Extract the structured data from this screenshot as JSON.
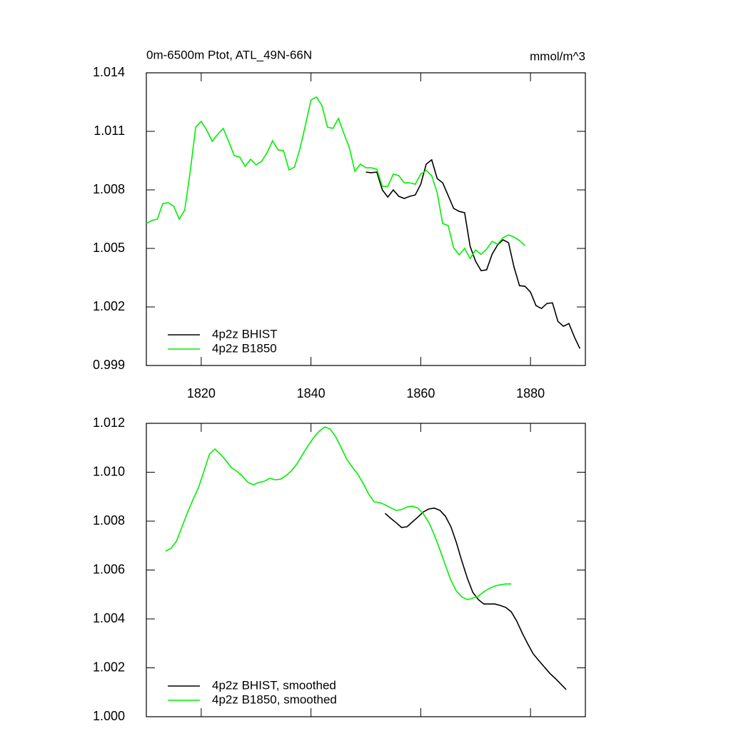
{
  "chart_data": [
    {
      "type": "line",
      "title": "0m-6500m Ptot, ATL_49N-66N",
      "units": "mmol/m^3",
      "xlim": [
        1810,
        1890
      ],
      "xticks": [
        1820,
        1840,
        1860,
        1880
      ],
      "ylim": [
        0.999,
        1.014
      ],
      "yticks": [
        1.014,
        1.011,
        1.008,
        1.005,
        1.002,
        0.999
      ],
      "legend": "lower left",
      "series": [
        {
          "name": "4p2z BHIST",
          "color": "#000000",
          "x": [
            1850,
            1851,
            1852,
            1853,
            1854,
            1855,
            1856,
            1857,
            1858,
            1859,
            1860,
            1861,
            1862,
            1863,
            1864,
            1865,
            1866,
            1867,
            1868,
            1869,
            1870,
            1871,
            1872,
            1873,
            1874,
            1875,
            1876,
            1877,
            1878,
            1879,
            1880,
            1881,
            1882,
            1883,
            1884,
            1885,
            1886,
            1887,
            1888,
            1889
          ],
          "values": [
            1.00891,
            1.00888,
            1.00891,
            1.008,
            1.00763,
            1.008,
            1.00767,
            1.00756,
            1.00767,
            1.00774,
            1.00829,
            1.00932,
            1.00954,
            1.00858,
            1.00836,
            1.00771,
            1.00705,
            1.0069,
            1.00683,
            1.00511,
            1.00434,
            1.00386,
            1.0039,
            1.0047,
            1.00518,
            1.00544,
            1.00529,
            1.00404,
            1.00309,
            1.00306,
            1.00276,
            1.00207,
            1.00192,
            1.00218,
            1.00221,
            1.00126,
            1.00101,
            1.00115,
            1.00046,
            0.99987
          ]
        },
        {
          "name": "4p2z B1850",
          "color": "#00ee00",
          "x": [
            1810,
            1811,
            1812,
            1813,
            1814,
            1815,
            1816,
            1817,
            1818,
            1819,
            1820,
            1821,
            1822,
            1823,
            1824,
            1825,
            1826,
            1827,
            1828,
            1829,
            1830,
            1831,
            1832,
            1833,
            1834,
            1835,
            1836,
            1837,
            1838,
            1839,
            1840,
            1841,
            1842,
            1843,
            1844,
            1845,
            1846,
            1847,
            1848,
            1849,
            1850,
            1851,
            1852,
            1853,
            1854,
            1855,
            1856,
            1857,
            1858,
            1859,
            1860,
            1861,
            1862,
            1863,
            1864,
            1865,
            1866,
            1867,
            1868,
            1869,
            1870,
            1871,
            1872,
            1873,
            1874,
            1875,
            1876,
            1877,
            1878,
            1879
          ],
          "values": [
            1.00628,
            1.00643,
            1.0065,
            1.0073,
            1.00734,
            1.00716,
            1.0065,
            1.00697,
            1.00895,
            1.01122,
            1.01151,
            1.01107,
            1.01049,
            1.01085,
            1.01115,
            1.01049,
            1.00976,
            1.00968,
            1.00921,
            1.00957,
            1.00928,
            1.00946,
            1.0099,
            1.01052,
            1.01005,
            1.01001,
            1.00902,
            1.00917,
            1.01012,
            1.01133,
            1.01261,
            1.01276,
            1.01232,
            1.01122,
            1.01115,
            1.01166,
            1.01089,
            1.01016,
            1.00895,
            1.00932,
            1.00913,
            1.00913,
            1.00906,
            1.00818,
            1.00818,
            1.00881,
            1.00873,
            1.00836,
            1.00836,
            1.00829,
            1.00881,
            1.00899,
            1.00873,
            1.00785,
            1.00628,
            1.00617,
            1.00503,
            1.00467,
            1.005,
            1.00448,
            1.00492,
            1.0047,
            1.00496,
            1.00536,
            1.00522,
            1.00555,
            1.00569,
            1.00558,
            1.0054,
            1.00514
          ]
        }
      ]
    },
    {
      "type": "line",
      "xlim": [
        1810,
        1890
      ],
      "xticks": [
        1820,
        1840,
        1860,
        1880
      ],
      "ylim": [
        1,
        1.012
      ],
      "yticks": [
        1.012,
        {
          "value": 1.01,
          "label": "1.010"
        },
        1.008,
        1.006,
        1.004,
        1.002,
        {
          "value": 1,
          "label": "1.000"
        }
      ],
      "legend": "lower left",
      "series": [
        {
          "name": "4p2z BHIST, smoothed",
          "color": "#000000",
          "x": [
            1853.5,
            1854.5,
            1855.5,
            1856.5,
            1857.5,
            1858.5,
            1859.5,
            1860.5,
            1861.5,
            1862.5,
            1863.5,
            1864.5,
            1865.5,
            1866.5,
            1867.5,
            1868.5,
            1869.5,
            1870.5,
            1871.5,
            1872.5,
            1873.5,
            1874.5,
            1875.5,
            1876.5,
            1877.5,
            1878.5,
            1879.5,
            1880.5,
            1881.5,
            1882.5,
            1883.5,
            1884.5,
            1885.5,
            1886.5
          ],
          "values": [
            1.00832,
            1.00812,
            1.00794,
            1.00774,
            1.00777,
            1.00797,
            1.00817,
            1.00838,
            1.0085,
            1.00853,
            1.00844,
            1.0082,
            1.00777,
            1.00712,
            1.00636,
            1.00566,
            1.00508,
            1.00479,
            1.00461,
            1.00461,
            1.00461,
            1.00455,
            1.00447,
            1.00429,
            1.00391,
            1.00342,
            1.00298,
            1.00257,
            1.0023,
            1.00204,
            1.00178,
            1.00157,
            1.00134,
            1.00111
          ]
        },
        {
          "name": "4p2z B1850, smoothed",
          "color": "#00ee00",
          "x": [
            1813.5,
            1814.5,
            1815.5,
            1816.5,
            1817.5,
            1818.5,
            1819.5,
            1820.5,
            1821.5,
            1822.5,
            1823.5,
            1824.5,
            1825.5,
            1826.5,
            1827.5,
            1828.5,
            1829.5,
            1830.5,
            1831.5,
            1832.5,
            1833.5,
            1834.5,
            1835.5,
            1836.5,
            1837.5,
            1838.5,
            1839.5,
            1840.5,
            1841.5,
            1842.5,
            1843.5,
            1844.5,
            1845.5,
            1846.5,
            1847.5,
            1848.5,
            1849.5,
            1850.5,
            1851.5,
            1852.5,
            1853.5,
            1854.5,
            1855.5,
            1856.5,
            1857.5,
            1858.5,
            1859.5,
            1860.5,
            1861.5,
            1862.5,
            1863.5,
            1864.5,
            1865.5,
            1866.5,
            1867.5,
            1868.5,
            1869.5,
            1870.5,
            1871.5,
            1872.5,
            1873.5,
            1874.5,
            1875.5,
            1876.5
          ],
          "values": [
            1.00677,
            1.00689,
            1.00718,
            1.00777,
            1.00835,
            1.00888,
            1.00937,
            1.01004,
            1.01074,
            1.01095,
            1.01074,
            1.01048,
            1.01019,
            1.01004,
            1.00984,
            1.00958,
            1.00949,
            1.00958,
            1.00963,
            1.00975,
            1.00969,
            1.00972,
            1.00987,
            1.01007,
            1.01036,
            1.01074,
            1.01109,
            1.01142,
            1.01168,
            1.01185,
            1.01177,
            1.01145,
            1.01101,
            1.01054,
            1.01022,
            1.00993,
            1.00955,
            1.00911,
            1.00879,
            1.00876,
            1.00867,
            1.00855,
            1.00844,
            1.00847,
            1.00858,
            1.00861,
            1.00853,
            1.00829,
            1.00794,
            1.00742,
            1.00683,
            1.00619,
            1.00558,
            1.00514,
            1.0049,
            1.00479,
            1.00485,
            1.00493,
            1.00511,
            1.00525,
            1.00534,
            1.0054,
            1.00543,
            1.00543
          ]
        }
      ]
    }
  ]
}
